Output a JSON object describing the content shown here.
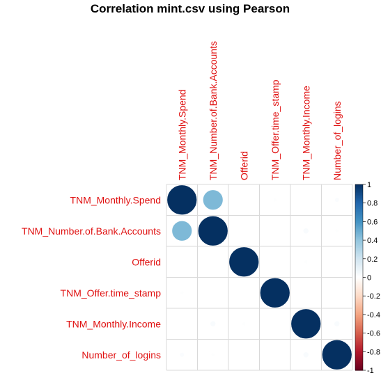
{
  "chart_data": {
    "type": "heatmap",
    "title": "Correlation mint.csv using Pearson",
    "variables": [
      "TNM_Monthly.Spend",
      "TNM_Number.of.Bank.Accounts",
      "Offerid",
      "TNM_Offer.time_stamp",
      "TNM_Monthly.Income",
      "Number_of_logins"
    ],
    "matrix": [
      [
        1.0,
        0.45,
        0.0,
        0.01,
        0.0,
        0.02
      ],
      [
        0.45,
        1.0,
        0.0,
        0.0,
        0.03,
        0.01
      ],
      [
        0.0,
        0.0,
        1.0,
        0.0,
        0.01,
        0.0
      ],
      [
        0.01,
        0.0,
        0.0,
        1.0,
        0.0,
        0.0
      ],
      [
        0.0,
        0.03,
        0.01,
        0.0,
        1.0,
        0.03
      ],
      [
        0.02,
        0.01,
        0.0,
        0.0,
        0.03,
        1.0
      ]
    ],
    "colorbar": {
      "range": [
        -1,
        1
      ],
      "ticks": [
        "1",
        "0.8",
        "0.6",
        "0.4",
        "0.2",
        "0",
        "-0.2",
        "-0.4",
        "-0.6",
        "-0.8",
        "-1"
      ]
    },
    "grid": true
  }
}
